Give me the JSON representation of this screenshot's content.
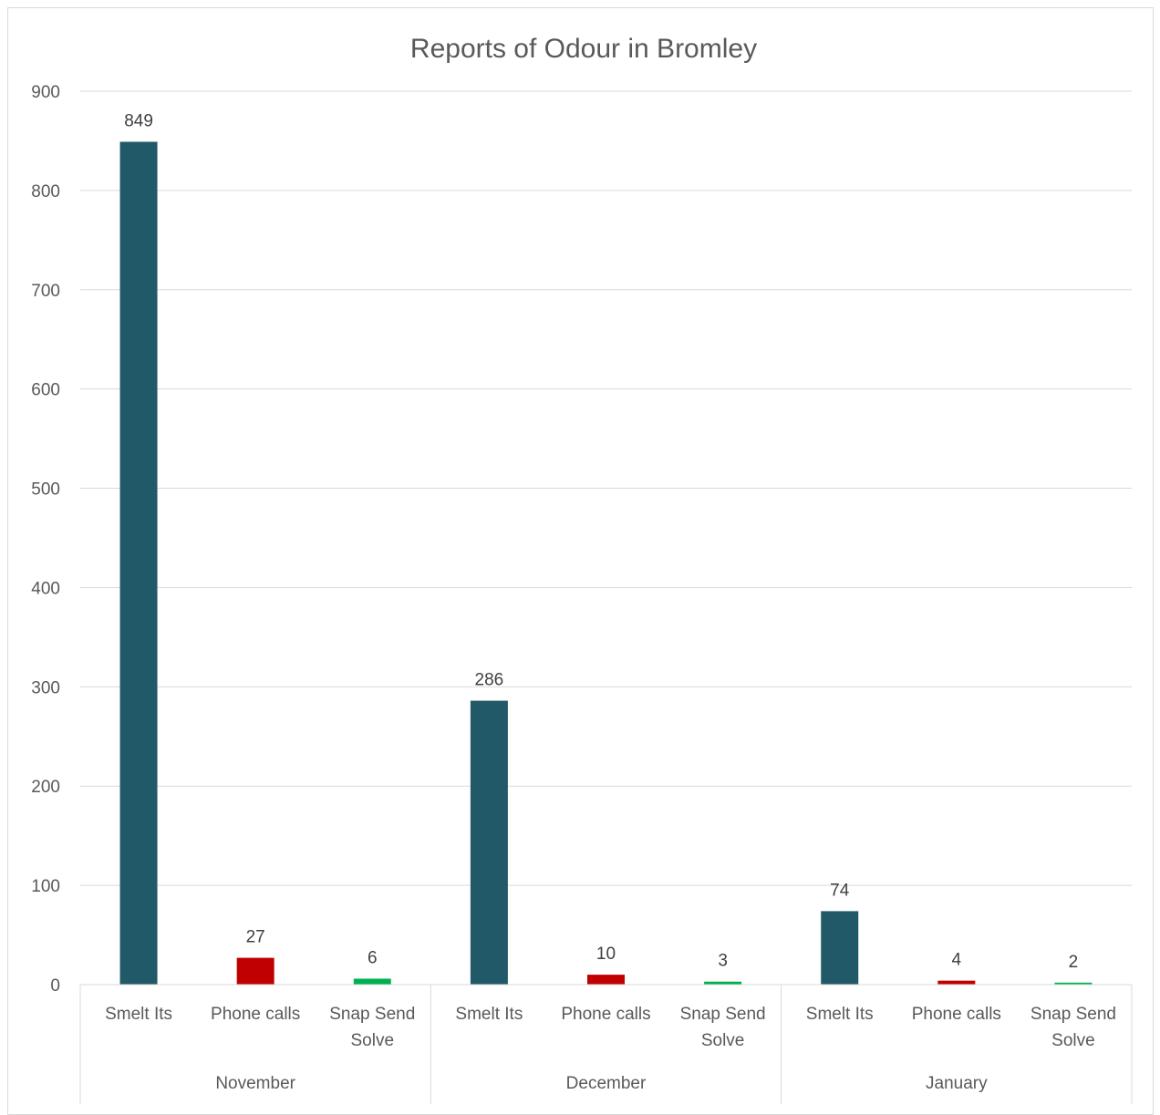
{
  "chart_data": {
    "type": "bar",
    "title": "Reports of Odour in Bromley",
    "xlabel": "",
    "ylabel": "",
    "ylim": [
      0,
      900
    ],
    "yticks": [
      "0",
      "100",
      "200",
      "300",
      "400",
      "500",
      "600",
      "700",
      "800",
      "900"
    ],
    "grid": true,
    "legend": "none",
    "groups": [
      {
        "name": "November",
        "bars": [
          {
            "category": "Smelt Its",
            "value": 849,
            "label": "849",
            "color": "#215968"
          },
          {
            "category": "Phone calls",
            "value": 27,
            "label": "27",
            "color": "#c00000"
          },
          {
            "category": "Snap Send Solve",
            "value": 6,
            "label": "6",
            "color": "#00b050"
          }
        ]
      },
      {
        "name": "December",
        "bars": [
          {
            "category": "Smelt Its",
            "value": 286,
            "label": "286",
            "color": "#215968"
          },
          {
            "category": "Phone calls",
            "value": 10,
            "label": "10",
            "color": "#c00000"
          },
          {
            "category": "Snap Send Solve",
            "value": 3,
            "label": "3",
            "color": "#00b050"
          }
        ]
      },
      {
        "name": "January",
        "bars": [
          {
            "category": "Smelt Its",
            "value": 74,
            "label": "74",
            "color": "#215968"
          },
          {
            "category": "Phone calls",
            "value": 4,
            "label": "4",
            "color": "#c00000"
          },
          {
            "category": "Snap Send Solve",
            "value": 2,
            "label": "2",
            "color": "#00b050"
          }
        ]
      }
    ]
  }
}
